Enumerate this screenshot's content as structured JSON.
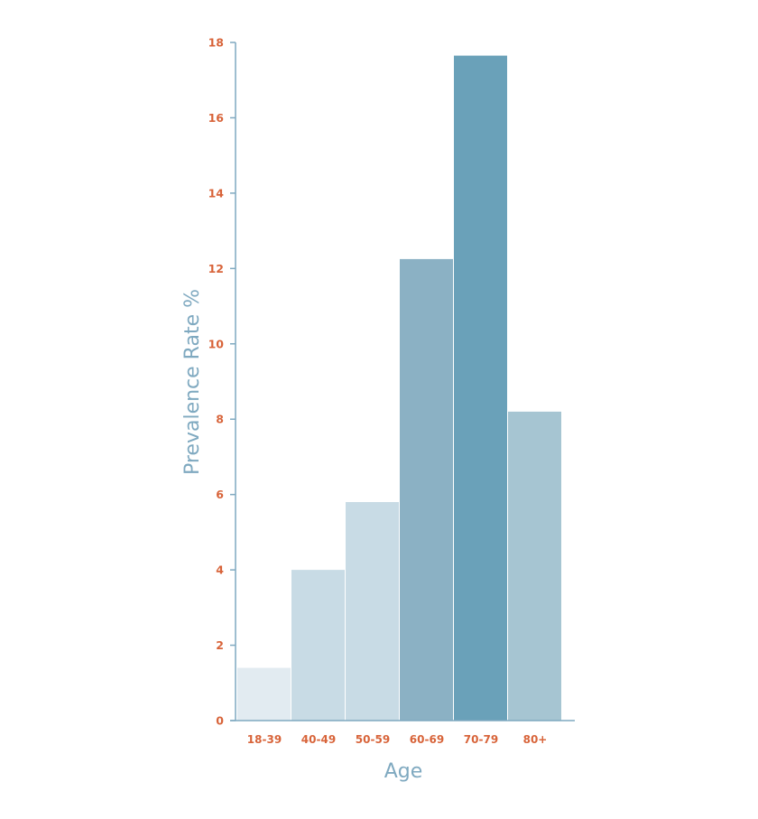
{
  "chart_data": {
    "type": "bar",
    "categories": [
      "18-39",
      "40-49",
      "50-59",
      "60-69",
      "70-79",
      "80+"
    ],
    "values": [
      1.4,
      4.0,
      5.8,
      12.25,
      17.65,
      8.2
    ],
    "bar_colors": [
      "#e2ebf1",
      "#c8dbe5",
      "#c8dbe5",
      "#8bb1c4",
      "#6aa1b9",
      "#a6c5d2"
    ],
    "xlabel": "Age",
    "ylabel": "Prevalence Rate %",
    "ylim": [
      0,
      18
    ],
    "yticks": [
      0,
      2,
      4,
      6,
      8,
      10,
      12,
      14,
      16,
      18
    ],
    "grid": false,
    "legend": "none"
  },
  "colors": {
    "tick_text": "#d8643a",
    "axis_title": "#7fa9c0",
    "axis_line": "#7fa9c0"
  }
}
